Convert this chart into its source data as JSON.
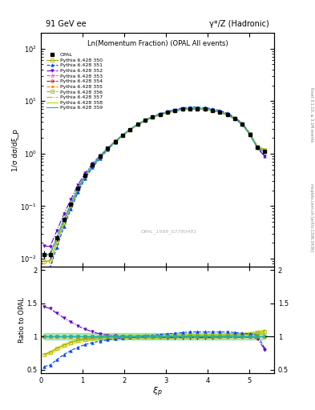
{
  "title_left": "91 GeV ee",
  "title_right": "γ*/Z (Hadronic)",
  "plot_title": "Ln(Momentum Fraction) (OPAL All events)",
  "ylabel_main": "1/σ dσ/dξ_p",
  "ylabel_ratio": "Ratio to OPAL",
  "right_label": "Rivet 3.1.10, ≥ 3.1M events",
  "right_label2": "mcplots.cern.ch [arXiv:1306.3436]",
  "watermark": "OPAL_1998_S3780481",
  "xi_values": [
    0.08,
    0.22,
    0.38,
    0.55,
    0.72,
    0.89,
    1.06,
    1.24,
    1.42,
    1.6,
    1.78,
    1.96,
    2.14,
    2.32,
    2.5,
    2.68,
    2.86,
    3.04,
    3.22,
    3.4,
    3.58,
    3.76,
    3.94,
    4.12,
    4.3,
    4.48,
    4.66,
    4.84,
    5.02,
    5.2,
    5.38
  ],
  "opal_data": [
    0.012,
    0.012,
    0.025,
    0.055,
    0.11,
    0.22,
    0.38,
    0.6,
    0.88,
    1.25,
    1.7,
    2.25,
    2.9,
    3.6,
    4.3,
    5.0,
    5.6,
    6.1,
    6.6,
    7.0,
    7.2,
    7.2,
    7.0,
    6.7,
    6.2,
    5.5,
    4.6,
    3.6,
    2.3,
    1.3,
    1.1
  ],
  "opal_errors": [
    0.002,
    0.002,
    0.003,
    0.005,
    0.008,
    0.012,
    0.018,
    0.025,
    0.032,
    0.04,
    0.05,
    0.07,
    0.09,
    0.1,
    0.12,
    0.13,
    0.14,
    0.15,
    0.16,
    0.17,
    0.17,
    0.17,
    0.16,
    0.15,
    0.14,
    0.12,
    0.11,
    0.09,
    0.07,
    0.05,
    0.07
  ],
  "pythia_sets": [
    {
      "label": "Pythia 6.428 350",
      "color": "#aaaa00",
      "linestyle": "-",
      "marker": "s",
      "fillstyle": "none",
      "mec": "#aaaa00"
    },
    {
      "label": "Pythia 6.428 351",
      "color": "#0044ff",
      "linestyle": "--",
      "marker": "^",
      "fillstyle": "full",
      "mec": "#0044ff"
    },
    {
      "label": "Pythia 6.428 352",
      "color": "#6600cc",
      "linestyle": "-.",
      "marker": "v",
      "fillstyle": "full",
      "mec": "#6600cc"
    },
    {
      "label": "Pythia 6.428 353",
      "color": "#ff44aa",
      "linestyle": "--",
      "marker": "^",
      "fillstyle": "none",
      "mec": "#ff44aa"
    },
    {
      "label": "Pythia 6.428 354",
      "color": "#cc0000",
      "linestyle": "--",
      "marker": "o",
      "fillstyle": "none",
      "mec": "#cc0000"
    },
    {
      "label": "Pythia 6.428 355",
      "color": "#ff8800",
      "linestyle": "--",
      "marker": "*",
      "fillstyle": "full",
      "mec": "#ff8800"
    },
    {
      "label": "Pythia 6.428 356",
      "color": "#88bb00",
      "linestyle": "--",
      "marker": "s",
      "fillstyle": "none",
      "mec": "#88bb00"
    },
    {
      "label": "Pythia 6.428 357",
      "color": "#ccaa00",
      "linestyle": "-.",
      "marker": "",
      "fillstyle": "none",
      "mec": "#ccaa00"
    },
    {
      "label": "Pythia 6.428 358",
      "color": "#aadd00",
      "linestyle": "-",
      "marker": "",
      "fillstyle": "none",
      "mec": "#aadd00"
    },
    {
      "label": "Pythia 6.428 359",
      "color": "#00bbcc",
      "linestyle": "-",
      "marker": "",
      "fillstyle": "none",
      "mec": "#00bbcc"
    }
  ],
  "ratio_350": [
    0.73,
    0.76,
    0.82,
    0.87,
    0.91,
    0.94,
    0.96,
    0.975,
    0.985,
    0.99,
    0.995,
    0.998,
    1.0,
    1.0,
    1.0,
    1.0,
    1.0,
    1.0,
    1.01,
    1.01,
    1.01,
    1.01,
    1.01,
    1.01,
    1.01,
    1.02,
    1.02,
    1.03,
    1.04,
    1.06,
    1.08
  ],
  "ratio_351": [
    0.55,
    0.57,
    0.65,
    0.73,
    0.79,
    0.84,
    0.88,
    0.91,
    0.93,
    0.95,
    0.97,
    0.98,
    0.99,
    1.0,
    1.01,
    1.02,
    1.03,
    1.04,
    1.05,
    1.06,
    1.07,
    1.07,
    1.07,
    1.07,
    1.07,
    1.07,
    1.06,
    1.05,
    1.04,
    1.02,
    0.82
  ],
  "ratio_352": [
    1.45,
    1.42,
    1.35,
    1.28,
    1.22,
    1.16,
    1.11,
    1.07,
    1.04,
    1.02,
    1.01,
    1.0,
    0.99,
    0.99,
    0.99,
    0.99,
    0.99,
    0.985,
    0.985,
    0.985,
    0.985,
    0.985,
    0.985,
    0.985,
    0.99,
    0.99,
    0.99,
    0.99,
    0.99,
    0.97,
    0.8
  ],
  "ratio_others": [
    1.0,
    1.0,
    1.0,
    1.0,
    1.0,
    1.0,
    1.0,
    1.0,
    1.0,
    1.0,
    1.0,
    1.0,
    1.0,
    1.0,
    1.0,
    1.0,
    1.0,
    1.0,
    1.0,
    1.0,
    1.0,
    1.0,
    1.0,
    1.0,
    1.0,
    1.0,
    1.0,
    1.0,
    1.0,
    1.0,
    1.0
  ],
  "xlim": [
    0.0,
    5.6
  ],
  "ylim_main": [
    0.007,
    200
  ],
  "ylim_ratio": [
    0.45,
    2.05
  ],
  "yticks_ratio": [
    0.5,
    1.0,
    1.5,
    2.0
  ],
  "band_color_yellow": "#dddd00",
  "band_color_green": "#00bb44",
  "band_alpha": 0.35
}
